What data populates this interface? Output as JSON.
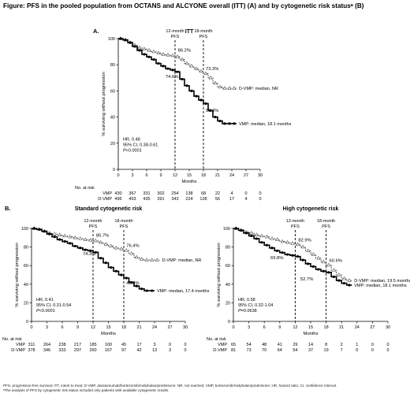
{
  "figure_title": "Figure: PFS in the pooled population from OCTANS and ALCYONE overall (ITT) (A) and by cytogenetic risk statusᵃ (B)",
  "footnote_1": "PFS, progression-free survival; ITT, intent to treat; D-VMP, daratumumab/bortezomib/melphalan/prednisone; NR, not reached; VMP, bortezomib/melphalan/prednisone; HR, hazard ratio; CI, confidence interval.",
  "footnote_2": "ᵃThe analysis of PFS by cytogenetic risk status included only patients with available cytogenetic results.",
  "colors": {
    "vmp": "#000000",
    "dvmp": "#555555"
  },
  "chart_data": [
    {
      "panel": "A.",
      "type": "line",
      "title": "ITT",
      "xlabel": "Months",
      "ylabel": "% surviving without progression",
      "xlim": [
        0,
        30
      ],
      "ylim": [
        0,
        100
      ],
      "x_ticks": [
        0,
        3,
        6,
        9,
        12,
        15,
        18,
        21,
        24,
        27,
        30
      ],
      "y_ticks": [
        0,
        20,
        40,
        60,
        80,
        100
      ],
      "landmarks": [
        {
          "x": 12,
          "label_1": "12-month",
          "label_2": "PFS"
        },
        {
          "x": 18,
          "label_1": "18-month",
          "label_2": "PFS"
        }
      ],
      "series": [
        {
          "name": "D-VMP",
          "label": "D-VMP: median, NR",
          "marker": "triangle",
          "x": [
            0,
            1,
            2,
            3,
            4,
            5,
            6,
            7,
            8,
            9,
            10,
            11,
            12,
            13,
            14,
            15,
            16,
            17,
            18,
            19,
            20,
            21,
            22,
            23,
            24,
            25
          ],
          "y": [
            100,
            99,
            97,
            95,
            93,
            92,
            91,
            90,
            89,
            88,
            87.5,
            87,
            86.2,
            84,
            81,
            79,
            77,
            75,
            73.3,
            70,
            66,
            63,
            62,
            62,
            62,
            62
          ]
        },
        {
          "name": "VMP",
          "label": "VMP: median, 18.1 months",
          "marker": "circle",
          "x": [
            0,
            1,
            2,
            3,
            4,
            5,
            6,
            7,
            8,
            9,
            10,
            11,
            12,
            13,
            14,
            15,
            16,
            17,
            18,
            19,
            20,
            21,
            22,
            23,
            24,
            25
          ],
          "y": [
            100,
            99,
            97,
            94,
            91,
            88,
            86,
            84,
            81,
            79,
            77,
            76,
            74.6,
            69,
            64,
            60,
            56,
            53,
            50.3,
            45,
            40,
            37,
            35,
            35,
            35,
            35
          ]
        }
      ],
      "annotations": [
        {
          "x": 12.6,
          "y": 90,
          "text": "86.2%"
        },
        {
          "x": 18.5,
          "y": 76,
          "text": "73.3%"
        },
        {
          "x": 10.0,
          "y": 70,
          "text": "74.6%"
        },
        {
          "x": 18.5,
          "y": 44,
          "text": "50.3%"
        }
      ],
      "stats": {
        "hr": "HR, 0.48",
        "ci": "95% CI, 0.38-0.61",
        "p": "<0.0001"
      },
      "at_risk": {
        "label": "No. at risk",
        "rows": [
          {
            "name": "VMP",
            "values": [
              "430",
              "367",
              "331",
              "302",
              "254",
              "138",
              "68",
              "22",
              "4",
              "0",
              "0"
            ]
          },
          {
            "name": "D-VMP",
            "values": [
              "496",
              "453",
              "435",
              "391",
              "343",
              "224",
              "128",
              "56",
              "17",
              "4",
              "0"
            ]
          }
        ]
      }
    },
    {
      "panel": "B.",
      "type": "line",
      "title": "Standard cytogenetic risk",
      "xlabel": "Months",
      "ylabel": "% surviving without progression",
      "xlim": [
        0,
        30
      ],
      "ylim": [
        0,
        100
      ],
      "x_ticks": [
        0,
        3,
        6,
        9,
        12,
        15,
        18,
        21,
        24,
        27,
        30
      ],
      "y_ticks": [
        0,
        20,
        40,
        60,
        80,
        100
      ],
      "landmarks": [
        {
          "x": 12,
          "label_1": "12-month",
          "label_2": "PFS"
        },
        {
          "x": 18,
          "label_1": "18-month",
          "label_2": "PFS"
        }
      ],
      "series": [
        {
          "name": "D-VMP",
          "label": "D-VMP: median, NR",
          "marker": "triangle",
          "x": [
            0,
            1,
            2,
            3,
            4,
            5,
            6,
            7,
            8,
            9,
            10,
            11,
            12,
            13,
            14,
            15,
            16,
            17,
            18,
            19,
            20,
            21,
            22,
            23,
            24,
            25
          ],
          "y": [
            100,
            99,
            97,
            95,
            94,
            93,
            92,
            91,
            90,
            89,
            88,
            87.5,
            86.7,
            85,
            83,
            81,
            79,
            78,
            76.4,
            73,
            69,
            67,
            66,
            66,
            66,
            66
          ]
        },
        {
          "name": "VMP",
          "label": "VMP: median, 17.4 months",
          "marker": "circle",
          "x": [
            0,
            1,
            2,
            3,
            4,
            5,
            6,
            7,
            8,
            9,
            10,
            11,
            12,
            13,
            14,
            15,
            16,
            17,
            18,
            19,
            20,
            21,
            22,
            23,
            24
          ],
          "y": [
            100,
            99,
            97,
            94,
            91,
            88,
            86,
            84,
            81,
            79,
            77,
            76,
            74.3,
            68,
            63,
            58,
            54,
            50,
            46.6,
            42,
            38,
            35,
            33,
            33,
            33
          ]
        }
      ],
      "annotations": [
        {
          "x": 12.6,
          "y": 91,
          "text": "86.7%"
        },
        {
          "x": 18.5,
          "y": 80,
          "text": "76.4%"
        },
        {
          "x": 10.0,
          "y": 71,
          "text": "74.3%"
        },
        {
          "x": 18.5,
          "y": 40,
          "text": "46.6%"
        }
      ],
      "stats": {
        "hr": "HR, 0.41",
        "ci": "95% CI, 0.31-0.54",
        "p": "<0.0001"
      },
      "at_risk": {
        "label": "No. at risk",
        "rows": [
          {
            "name": "VMP",
            "values": [
              "311",
              "264",
              "238",
              "217",
              "185",
              "100",
              "45",
              "17",
              "3",
              "0",
              "0"
            ]
          },
          {
            "name": "D-VMP",
            "values": [
              "378",
              "346",
              "333",
              "297",
              "260",
              "167",
              "97",
              "42",
              "13",
              "3",
              "0"
            ]
          }
        ]
      }
    },
    {
      "panel": "",
      "type": "line",
      "title": "High cytogenetic risk",
      "xlabel": "Months",
      "ylabel": "% surviving without progression",
      "xlim": [
        0,
        30
      ],
      "ylim": [
        0,
        100
      ],
      "x_ticks": [
        0,
        3,
        6,
        9,
        12,
        15,
        18,
        21,
        24,
        27,
        30
      ],
      "y_ticks": [
        0,
        20,
        40,
        60,
        80,
        100
      ],
      "landmarks": [
        {
          "x": 12,
          "label_1": "12-month",
          "label_2": "PFS"
        },
        {
          "x": 18,
          "label_1": "18-month",
          "label_2": "PFS"
        }
      ],
      "series": [
        {
          "name": "D-VMP",
          "label": "D-VMP: median, 19.5 months",
          "marker": "triangle",
          "x": [
            0,
            1,
            2,
            3,
            4,
            5,
            6,
            7,
            8,
            9,
            10,
            11,
            12,
            13,
            14,
            15,
            16,
            17,
            18,
            19,
            20,
            21,
            22,
            23
          ],
          "y": [
            100,
            98,
            96,
            95,
            93,
            92,
            91,
            89,
            88,
            86,
            85,
            84,
            82.9,
            80,
            76,
            72,
            68,
            64,
            60.6,
            55,
            50,
            46,
            44,
            44
          ]
        },
        {
          "name": "VMP",
          "label": "VMP: median, 18.1 months",
          "marker": "circle",
          "x": [
            0,
            1,
            2,
            3,
            4,
            5,
            6,
            7,
            8,
            9,
            10,
            11,
            12,
            13,
            14,
            15,
            16,
            17,
            18,
            19,
            20,
            21,
            22,
            23
          ],
          "y": [
            100,
            98,
            95,
            92,
            89,
            85,
            82,
            79,
            76,
            74,
            72,
            71,
            69.8,
            66,
            62,
            59,
            56,
            54,
            52.7,
            48,
            44,
            41,
            39,
            39
          ]
        }
      ],
      "annotations": [
        {
          "x": 12.6,
          "y": 86,
          "text": "82.9%"
        },
        {
          "x": 18.6,
          "y": 64,
          "text": "60.6%"
        },
        {
          "x": 7.2,
          "y": 67,
          "text": "69.8%"
        },
        {
          "x": 13.0,
          "y": 44,
          "text": "52.7%"
        }
      ],
      "stats": {
        "hr": "HR, 0.58",
        "ci": "95% CI, 0.32-1.04",
        "p": "=0.0638"
      },
      "at_risk": {
        "label": "No. at risk",
        "rows": [
          {
            "name": "VMP",
            "values": [
              "65",
              "54",
              "48",
              "41",
              "29",
              "14",
              "8",
              "2",
              "1",
              "0",
              "0"
            ]
          },
          {
            "name": "D-VMP",
            "values": [
              "81",
              "73",
              "70",
              "64",
              "54",
              "37",
              "19",
              "7",
              "0",
              "0",
              "0"
            ]
          }
        ]
      }
    }
  ]
}
